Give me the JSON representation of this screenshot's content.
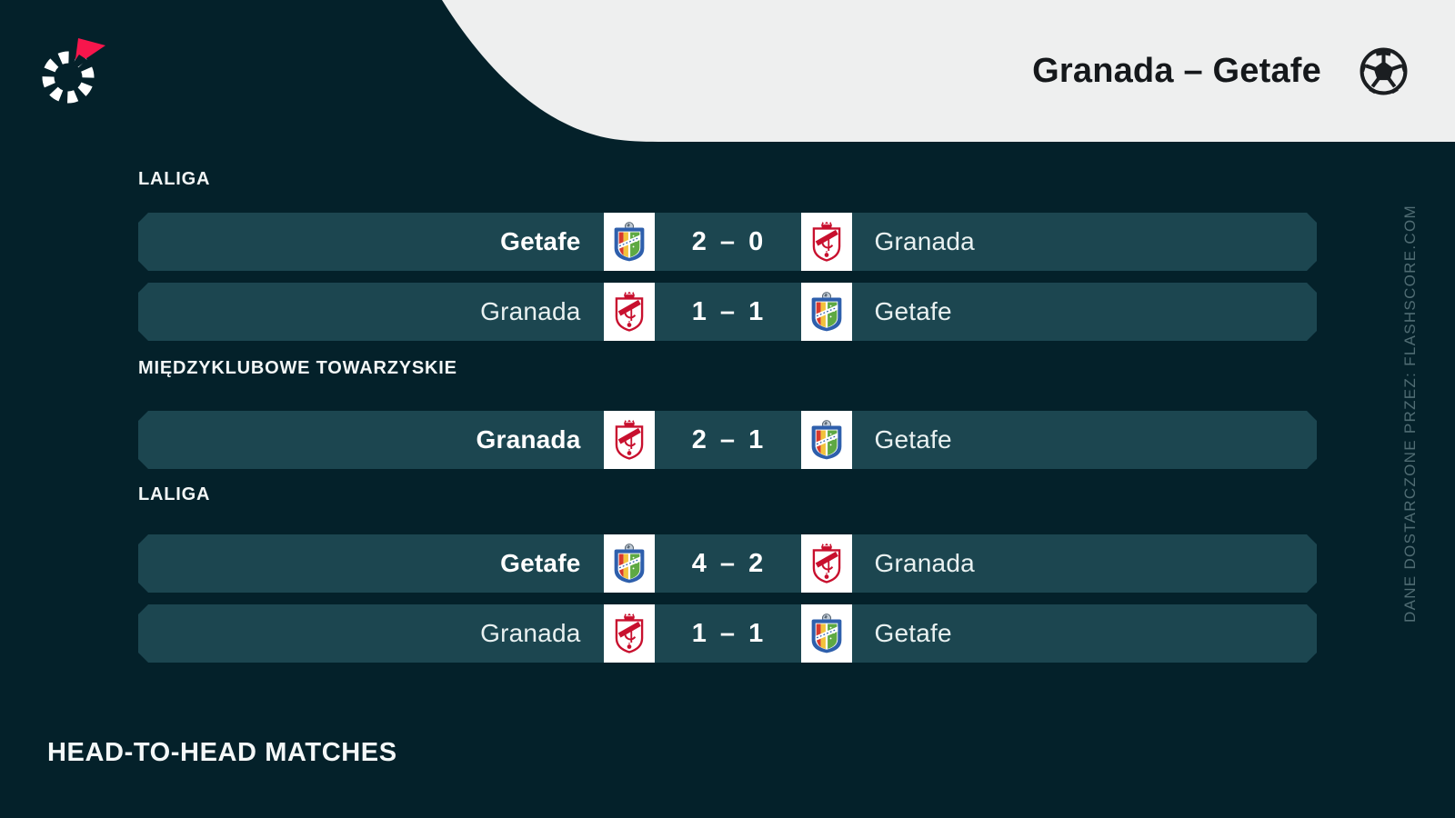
{
  "header": {
    "title": "Granada – Getafe",
    "icon": "soccer-ball-icon"
  },
  "brand": {
    "icon": "flashscore-logo"
  },
  "watermark": {
    "text": "DANE DOSTARCZONE PRZEZ: FLASHSCORE.COM"
  },
  "footer": {
    "heading": "HEAD-TO-HEAD MATCHES"
  },
  "colors": {
    "background": "#04212A",
    "row_background": "#1C4650",
    "header_background": "#EEEFEF",
    "header_text": "#15181B",
    "accent_red": "#F7164C",
    "watermark_text": "#506C73",
    "getafe_blue": "#2E5FAC",
    "granada_red": "#C8102E"
  },
  "sections": [
    {
      "label": "LALIGA",
      "matches": [
        {
          "home": "Getafe",
          "home_logo": "getafe-crest",
          "home_score": "2",
          "away_score": "0",
          "away_logo": "granada-crest",
          "away": "Granada",
          "score_separator": "–",
          "winner": "home"
        },
        {
          "home": "Granada",
          "home_logo": "granada-crest",
          "home_score": "1",
          "away_score": "1",
          "away_logo": "getafe-crest",
          "away": "Getafe",
          "score_separator": "–",
          "winner": "draw"
        }
      ]
    },
    {
      "label": "MIĘDZYKLUBOWE TOWARZYSKIE",
      "matches": [
        {
          "home": "Granada",
          "home_logo": "granada-crest",
          "home_score": "2",
          "away_score": "1",
          "away_logo": "getafe-crest",
          "away": "Getafe",
          "score_separator": "–",
          "winner": "home"
        }
      ]
    },
    {
      "label": "LALIGA",
      "matches": [
        {
          "home": "Getafe",
          "home_logo": "getafe-crest",
          "home_score": "4",
          "away_score": "2",
          "away_logo": "granada-crest",
          "away": "Granada",
          "score_separator": "–",
          "winner": "home"
        },
        {
          "home": "Granada",
          "home_logo": "granada-crest",
          "home_score": "1",
          "away_score": "1",
          "away_logo": "getafe-crest",
          "away": "Getafe",
          "score_separator": "–",
          "winner": "draw"
        }
      ]
    }
  ]
}
